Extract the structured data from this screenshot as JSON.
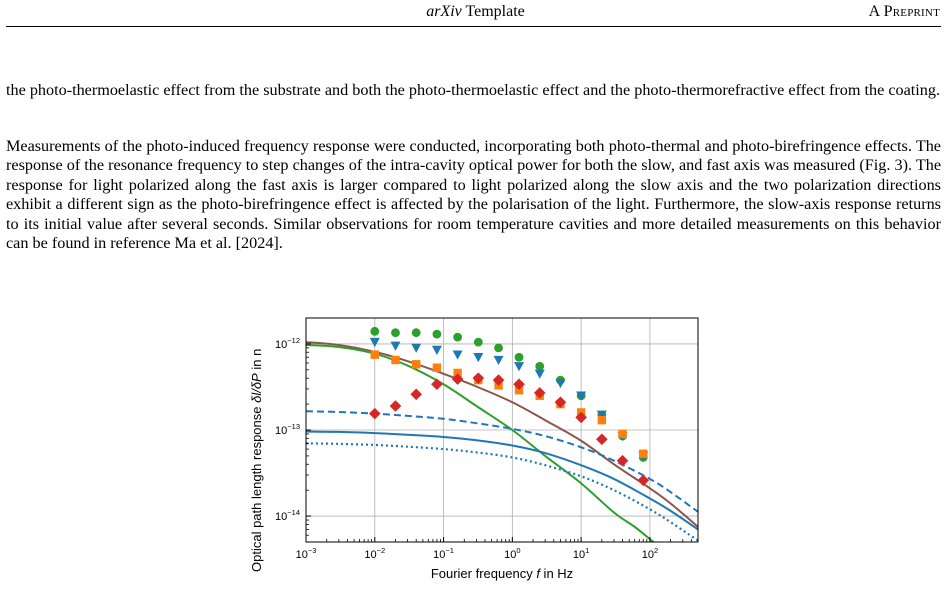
{
  "header": {
    "title_italic": "arXiv",
    "title_rest": " Template",
    "right": "A Preprint"
  },
  "paragraphs": [
    "the photo-thermoelastic effect from the substrate and both the photo-thermoelastic effect and the photo-thermorefractive effect from the coating.",
    "Measurements of the photo-induced frequency response were conducted, incorporating both photo-thermal and photo-birefringence effects. The response of the resonance frequency to step changes of the intra-cavity optical power for both the slow, and fast axis was measured (Fig. 3). The response for light polarized along the fast axis is larger compared to light polarized along the slow axis and the two polarization directions exhibit a different sign as the photo-birefringence effect is affected by the polarisation of the light. Furthermore, the slow-axis response returns to its initial value after several seconds. Similar observations for room temperature cavities and more detailed measurements on this behavior can be found in reference Ma et al. [2024]."
  ],
  "chart_data": {
    "type": "scatter",
    "xlabel_prefix": "Fourier frequency ",
    "xlabel_var": "f",
    "xlabel_suffix": " in Hz",
    "ylabel_prefix": "Optical path length response ",
    "ylabel_var": "δl/δP",
    "ylabel_suffix": " in n",
    "x_scale": "log",
    "y_scale": "log",
    "xlim": [
      0.001,
      500
    ],
    "ylim": [
      5e-15,
      2e-12
    ],
    "grid": true,
    "x_ticks": [
      {
        "value": 0.001,
        "base": "10",
        "exp": "−3"
      },
      {
        "value": 0.01,
        "base": "10",
        "exp": "−2"
      },
      {
        "value": 0.1,
        "base": "10",
        "exp": "−1"
      },
      {
        "value": 1,
        "base": "10",
        "exp": "0"
      },
      {
        "value": 10,
        "base": "10",
        "exp": "1"
      },
      {
        "value": 100,
        "base": "10",
        "exp": "2"
      }
    ],
    "y_ticks": [
      {
        "value": 1e-14,
        "base": "10",
        "exp": "−14"
      },
      {
        "value": 1e-13,
        "base": "10",
        "exp": "−13"
      },
      {
        "value": 1e-12,
        "base": "10",
        "exp": "−12"
      }
    ],
    "markers": [
      {
        "shape": "circle",
        "color": "#2ca02c",
        "x": [
          0.01,
          0.02,
          0.04,
          0.08,
          0.16,
          0.32,
          0.63,
          1.25,
          2.5,
          5,
          10,
          20,
          40,
          80
        ],
        "y": [
          1.4e-12,
          1.35e-12,
          1.35e-12,
          1.3e-12,
          1.2e-12,
          1.05e-12,
          9e-13,
          7e-13,
          5.5e-13,
          3.8e-13,
          2.5e-13,
          1.5e-13,
          8.5e-14,
          4.8e-14
        ]
      },
      {
        "shape": "triangle",
        "color": "#1f77b4",
        "x": [
          0.01,
          0.02,
          0.04,
          0.08,
          0.16,
          0.32,
          0.63,
          1.25,
          2.5,
          5,
          10,
          20,
          40,
          80
        ],
        "y": [
          1.05e-12,
          9.5e-13,
          9e-13,
          8.5e-13,
          7.5e-13,
          7e-13,
          6.5e-13,
          5.5e-13,
          4.5e-13,
          3.5e-13,
          2.5e-13,
          1.5e-13,
          8.5e-14,
          5e-14
        ]
      },
      {
        "shape": "square",
        "color": "#ff7f0e",
        "x": [
          0.01,
          0.02,
          0.04,
          0.08,
          0.16,
          0.32,
          0.63,
          1.25,
          2.5,
          5,
          10,
          20,
          40,
          80
        ],
        "y": [
          7.5e-13,
          6.5e-13,
          5.8e-13,
          5.3e-13,
          4.6e-13,
          3.8e-13,
          3.3e-13,
          2.9e-13,
          2.5e-13,
          2e-13,
          1.6e-13,
          1.3e-13,
          9e-14,
          5.3e-14
        ]
      },
      {
        "shape": "diamond",
        "color": "#d62728",
        "x": [
          0.01,
          0.02,
          0.04,
          0.08,
          0.16,
          0.32,
          0.63,
          1.25,
          2.5,
          5,
          10,
          20,
          40,
          80
        ],
        "y": [
          1.55e-13,
          1.9e-13,
          2.6e-13,
          3.4e-13,
          3.9e-13,
          4e-13,
          3.8e-13,
          3.4e-13,
          2.7e-13,
          2.1e-13,
          1.4e-13,
          7.8e-14,
          4.4e-14,
          2.6e-14
        ]
      }
    ],
    "curves": [
      {
        "color": "#8c564b",
        "style": "solid",
        "x": [
          0.001,
          0.003,
          0.01,
          0.03,
          0.1,
          0.3,
          1,
          3,
          10,
          30,
          100,
          200,
          500
        ],
        "y": [
          1.05e-12,
          9.7e-13,
          8.1e-13,
          6.3e-13,
          4.5e-13,
          3.2e-13,
          2.1e-13,
          1.3e-13,
          7.5e-14,
          4e-14,
          2.1e-14,
          1.4e-14,
          7.5e-15
        ]
      },
      {
        "color": "#2ca02c",
        "style": "solid",
        "x": [
          0.001,
          0.003,
          0.01,
          0.03,
          0.1,
          0.3,
          1,
          3,
          10,
          30,
          60,
          100,
          150
        ],
        "y": [
          9.7e-13,
          9.2e-13,
          7.7e-13,
          5.6e-13,
          3.4e-13,
          1.9e-13,
          1e-13,
          5e-14,
          2.4e-14,
          1.1e-14,
          7.5e-15,
          5.4e-15,
          4.2e-15
        ]
      },
      {
        "color": "#1f77b4",
        "style": "dashed",
        "x": [
          0.001,
          0.003,
          0.01,
          0.03,
          0.1,
          0.3,
          1,
          3,
          10,
          30,
          100,
          200,
          500
        ],
        "y": [
          1.65e-13,
          1.62e-13,
          1.55e-13,
          1.46e-13,
          1.35e-13,
          1.2e-13,
          1.03e-13,
          8.5e-14,
          6.3e-14,
          4.4e-14,
          2.7e-14,
          1.9e-14,
          1.12e-14
        ]
      },
      {
        "color": "#1f77b4",
        "style": "solid",
        "x": [
          0.001,
          0.003,
          0.01,
          0.03,
          0.1,
          0.3,
          1,
          3,
          10,
          30,
          100,
          200,
          500
        ],
        "y": [
          9.6e-14,
          9.5e-14,
          9.2e-14,
          8.8e-14,
          8.3e-14,
          7.6e-14,
          6.6e-14,
          5.4e-14,
          3.9e-14,
          2.7e-14,
          1.6e-14,
          1.15e-14,
          7e-15
        ]
      },
      {
        "color": "#1f77b4",
        "style": "dotted",
        "x": [
          0.001,
          0.003,
          0.01,
          0.03,
          0.1,
          0.3,
          1,
          3,
          10,
          30,
          100,
          200,
          500
        ],
        "y": [
          7e-14,
          6.9e-14,
          6.7e-14,
          6.4e-14,
          6e-14,
          5.5e-14,
          4.8e-14,
          3.9e-14,
          2.9e-14,
          2e-14,
          1.2e-14,
          8.5e-15,
          5.2e-15
        ]
      }
    ]
  }
}
